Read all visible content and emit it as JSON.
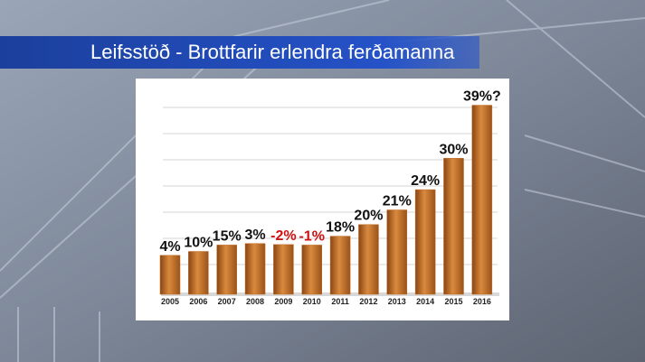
{
  "chart_data": {
    "type": "bar",
    "title": "Leifsstöð - Brottfarir erlendra ferðamanna",
    "categories": [
      "2005",
      "2006",
      "2007",
      "2008",
      "2009",
      "2010",
      "2011",
      "2012",
      "2013",
      "2014",
      "2015",
      "2016"
    ],
    "values": [
      4,
      10,
      15,
      3,
      -2,
      -1,
      18,
      20,
      21,
      24,
      30,
      39
    ],
    "value_labels": [
      "4%",
      "10%",
      "15%",
      "3%",
      "-2%",
      "-1%",
      "18%",
      "20%",
      "21%",
      "24%",
      "30%",
      "39%?"
    ],
    "color": "#c06a26",
    "label_color": "#111111",
    "negative_label_color": "#d01010",
    "grid": true
  }
}
